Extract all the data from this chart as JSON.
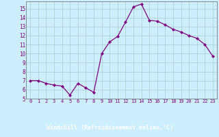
{
  "x": [
    0,
    1,
    2,
    3,
    4,
    5,
    6,
    7,
    8,
    9,
    10,
    11,
    12,
    13,
    14,
    15,
    16,
    17,
    18,
    19,
    20,
    21,
    22,
    23
  ],
  "y": [
    7.0,
    7.0,
    6.7,
    6.5,
    6.4,
    5.4,
    6.7,
    6.2,
    5.7,
    10.0,
    11.3,
    11.9,
    13.5,
    15.2,
    15.5,
    13.7,
    13.6,
    13.2,
    12.7,
    12.4,
    12.0,
    11.7,
    11.0,
    9.7
  ],
  "line_color": "#800080",
  "marker": "D",
  "marker_size": 2.0,
  "bg_color": "#cceeff",
  "grid_color": "#aacccc",
  "xlabel": "Windchill (Refroidissement éolien,°C)",
  "xlabel_color": "#ffffff",
  "xlabel_bg": "#800080",
  "ylabel_ticks": [
    5,
    6,
    7,
    8,
    9,
    10,
    11,
    12,
    13,
    14,
    15
  ],
  "xlim": [
    -0.5,
    23.5
  ],
  "ylim": [
    5,
    15.8
  ],
  "font_color": "#800080"
}
